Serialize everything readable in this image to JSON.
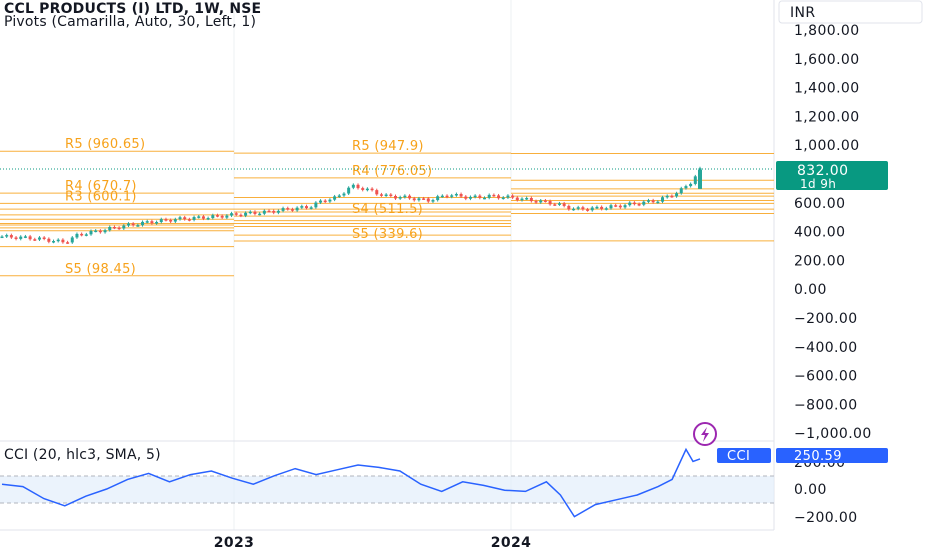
{
  "header": {
    "title": "CCL PRODUCTS (I) LTD, 1W, NSE",
    "indicator": "Pivots (Camarilla, Auto, 30, Left, 1)",
    "cci_label": "CCI (20, hlc3, SMA, 5)"
  },
  "currency": "INR",
  "price_tag": {
    "value": "832.00",
    "countdown": "1d 9h"
  },
  "cci_tag": {
    "name": "CCI",
    "value": "250.59"
  },
  "colors": {
    "up": "#26a69a",
    "down": "#ef5350",
    "pivot": "#f7a21b",
    "cci_line": "#2962ff",
    "cci_band": "#e3eefb",
    "price_tag": "#089981",
    "cci_tag": "#2962ff",
    "alert_icon": "#9c27b0"
  },
  "chart_data": [
    {
      "type": "line",
      "title": "CCL PRODUCTS (I) LTD, 1W, NSE",
      "y_unit": "INR",
      "y_ticks": [
        "1,800.00",
        "1,600.00",
        "1,400.00",
        "1,200.00",
        "1,000.00",
        "800.00",
        "600.00",
        "400.00",
        "200.00",
        "0.00",
        "−200.00",
        "−400.00",
        "−600.00",
        "−800.00",
        "−1,000.00"
      ],
      "x_ticks": [
        "2023",
        "2024"
      ],
      "ylim": [
        -1000,
        1850
      ],
      "last_value": 832.0,
      "price_path": [
        [
          0,
          370
        ],
        [
          4,
          360
        ],
        [
          6,
          350
        ],
        [
          9,
          330
        ],
        [
          11,
          385
        ],
        [
          14,
          410
        ],
        [
          17,
          440
        ],
        [
          21,
          470
        ],
        [
          25,
          490
        ],
        [
          31,
          510
        ],
        [
          35,
          530
        ],
        [
          38,
          540
        ],
        [
          41,
          560
        ],
        [
          44,
          575
        ],
        [
          46,
          620
        ],
        [
          48,
          640
        ],
        [
          50,
          720
        ],
        [
          52,
          700
        ],
        [
          55,
          650
        ],
        [
          58,
          640
        ],
        [
          61,
          620
        ],
        [
          64,
          660
        ],
        [
          67,
          640
        ],
        [
          70,
          650
        ],
        [
          73,
          640
        ],
        [
          76,
          620
        ],
        [
          79,
          600
        ],
        [
          82,
          560
        ],
        [
          85,
          565
        ],
        [
          88,
          580
        ],
        [
          91,
          600
        ],
        [
          94,
          620
        ],
        [
          97,
          680
        ],
        [
          99,
          760
        ],
        [
          100,
          832
        ]
      ],
      "pivot_periods": [
        {
          "labels": [
            "R5 (960.65)",
            "R4 (670.7)",
            "R3 (600.1)",
            "S5 (98.45)"
          ],
          "levels": {
            "R5": 960.65,
            "R4": 670.7,
            "R3": 600.1,
            "S5": 98.45
          }
        },
        {
          "labels": [
            "R5 (947.9)",
            "R4 (776.05)",
            "S4 (511.5)",
            "S5 (339.6)"
          ],
          "levels": {
            "R5": 947.9,
            "R4": 776.05,
            "S4": 511.5,
            "S5": 339.6
          }
        },
        {
          "labels": []
        }
      ]
    },
    {
      "type": "line",
      "title": "CCI (20, hlc3, SMA, 5)",
      "y_ticks": [
        "200.00",
        "0.00",
        "−200.00"
      ],
      "band": [
        -100,
        100
      ],
      "last_value": 250.59,
      "path": [
        [
          0,
          40
        ],
        [
          3,
          20
        ],
        [
          6,
          -80
        ],
        [
          9,
          -140
        ],
        [
          12,
          -60
        ],
        [
          15,
          0
        ],
        [
          18,
          80
        ],
        [
          21,
          130
        ],
        [
          24,
          60
        ],
        [
          27,
          120
        ],
        [
          30,
          150
        ],
        [
          33,
          90
        ],
        [
          36,
          40
        ],
        [
          39,
          110
        ],
        [
          42,
          170
        ],
        [
          45,
          120
        ],
        [
          48,
          160
        ],
        [
          51,
          200
        ],
        [
          54,
          180
        ],
        [
          57,
          150
        ],
        [
          60,
          40
        ],
        [
          63,
          -20
        ],
        [
          66,
          60
        ],
        [
          69,
          30
        ],
        [
          72,
          -10
        ],
        [
          75,
          -20
        ],
        [
          78,
          60
        ],
        [
          80,
          -50
        ],
        [
          82,
          -230
        ],
        [
          85,
          -130
        ],
        [
          88,
          -90
        ],
        [
          91,
          -50
        ],
        [
          94,
          20
        ],
        [
          96,
          80
        ],
        [
          98,
          330
        ],
        [
          99,
          230
        ],
        [
          100,
          250.59
        ]
      ]
    }
  ]
}
